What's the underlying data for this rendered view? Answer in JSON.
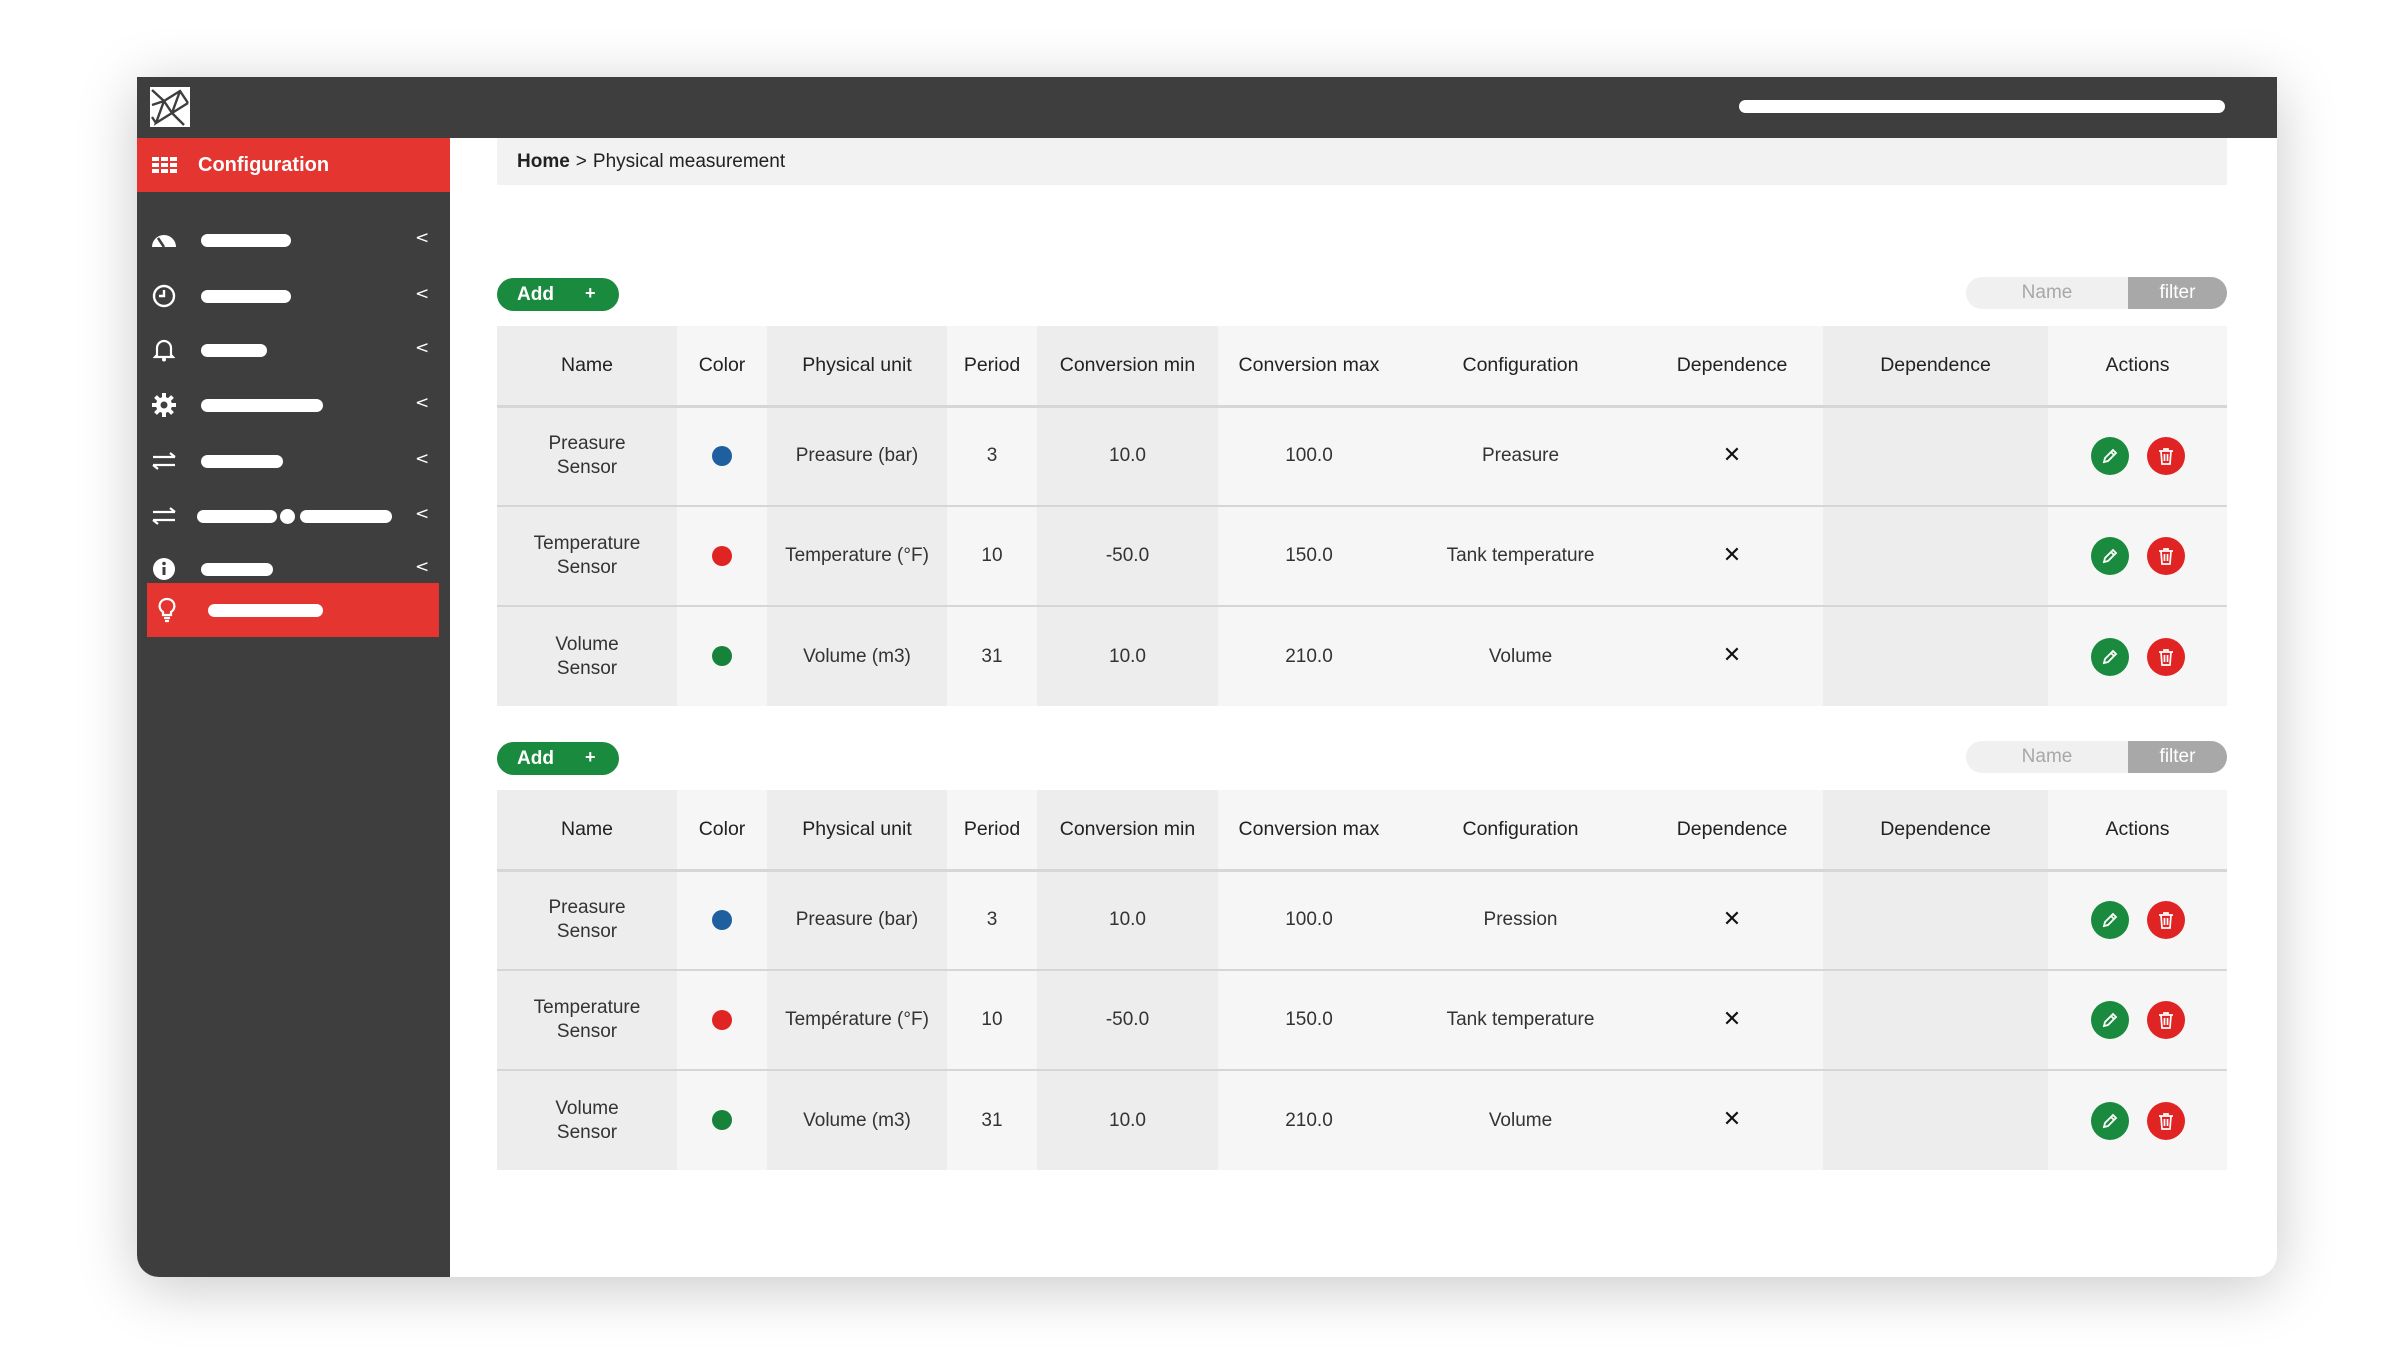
{
  "breadcrumb": {
    "home": "Home",
    "separator": ">",
    "current": "Physical measurement"
  },
  "sidebar": {
    "active_label": "Configuration",
    "items": [
      {
        "icon": "gauge-icon"
      },
      {
        "icon": "clock-icon"
      },
      {
        "icon": "bell-icon"
      },
      {
        "icon": "gear-icon"
      },
      {
        "icon": "transfer-icon"
      },
      {
        "icon": "transfer-icon"
      },
      {
        "icon": "info-icon"
      },
      {
        "icon": "lightbulb-icon"
      }
    ],
    "arrow": "<"
  },
  "colors": {
    "accent_red": "#e53530",
    "add_green": "#1a8a3e",
    "dark": "#3e3e3e",
    "blue": "#1f5fa0",
    "red": "#e02424",
    "green": "#16833a"
  },
  "section1": {
    "add_label": "Add",
    "add_plus": "+",
    "filter_placeholder": "Name",
    "filter_button": "filter",
    "headers": [
      "Name",
      "Color",
      "Physical unit",
      "Period",
      "Conversion min",
      "Conversion max",
      "Configuration",
      "Dependence",
      "Dependence",
      "Actions"
    ],
    "rows": [
      {
        "name_1": "Preasure",
        "name_2": "Sensor",
        "color": "#1f5fa0",
        "unit": "Preasure (bar)",
        "period": "3",
        "cmin": "10.0",
        "cmax": "100.0",
        "config": "Preasure",
        "dep1": "✕",
        "dep2": ""
      },
      {
        "name_1": "Temperature",
        "name_2": "Sensor",
        "color": "#e02424",
        "unit": "Temperature (°F)",
        "period": "10",
        "cmin": "-50.0",
        "cmax": "150.0",
        "config": "Tank temperature",
        "dep1": "✕",
        "dep2": ""
      },
      {
        "name_1": "Volume",
        "name_2": "Sensor",
        "color": "#16833a",
        "unit": "Volume (m3)",
        "period": "31",
        "cmin": "10.0",
        "cmax": "210.0",
        "config": "Volume",
        "dep1": "✕",
        "dep2": ""
      }
    ]
  },
  "section2": {
    "add_label": "Add",
    "add_plus": "+",
    "filter_placeholder": "Name",
    "filter_button": "filter",
    "headers": [
      "Name",
      "Color",
      "Physical unit",
      "Period",
      "Conversion min",
      "Conversion max",
      "Configuration",
      "Dependence",
      "Dependence",
      "Actions"
    ],
    "rows": [
      {
        "name_1": "Preasure",
        "name_2": "Sensor",
        "color": "#1f5fa0",
        "unit": "Preasure (bar)",
        "period": "3",
        "cmin": "10.0",
        "cmax": "100.0",
        "config": "Pression",
        "dep1": "✕",
        "dep2": ""
      },
      {
        "name_1": "Temperature",
        "name_2": "Sensor",
        "color": "#e02424",
        "unit": "Température (°F)",
        "period": "10",
        "cmin": "-50.0",
        "cmax": "150.0",
        "config": "Tank temperature",
        "dep1": "✕",
        "dep2": ""
      },
      {
        "name_1": "Volume",
        "name_2": "Sensor",
        "color": "#16833a",
        "unit": "Volume (m3)",
        "period": "31",
        "cmin": "10.0",
        "cmax": "210.0",
        "config": "Volume",
        "dep1": "✕",
        "dep2": ""
      }
    ]
  }
}
